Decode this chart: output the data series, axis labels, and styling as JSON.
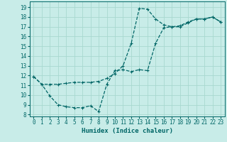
{
  "xlabel": "Humidex (Indice chaleur)",
  "bg_color": "#c8ece8",
  "grid_color": "#a8d8d0",
  "line_color": "#006666",
  "xlim": [
    -0.5,
    23.5
  ],
  "ylim": [
    7.8,
    19.6
  ],
  "xticks": [
    0,
    1,
    2,
    3,
    4,
    5,
    6,
    7,
    8,
    9,
    10,
    11,
    12,
    13,
    14,
    15,
    16,
    17,
    18,
    19,
    20,
    21,
    22,
    23
  ],
  "yticks": [
    8,
    9,
    10,
    11,
    12,
    13,
    14,
    15,
    16,
    17,
    18,
    19
  ],
  "series1_x": [
    0,
    1,
    2,
    3,
    4,
    5,
    6,
    7,
    8,
    9,
    10,
    11,
    12,
    13,
    14,
    15,
    16,
    17,
    18,
    19,
    20,
    21,
    22,
    23
  ],
  "series1_y": [
    11.9,
    11.1,
    9.9,
    9.0,
    8.8,
    8.7,
    8.7,
    8.9,
    8.3,
    11.1,
    12.5,
    12.6,
    12.4,
    12.6,
    12.5,
    15.3,
    16.9,
    17.0,
    17.0,
    17.4,
    17.8,
    17.8,
    18.0,
    17.5
  ],
  "series2_x": [
    0,
    1,
    2,
    3,
    4,
    5,
    6,
    7,
    8,
    9,
    10,
    11,
    12,
    13,
    14,
    15,
    16,
    17,
    18,
    19,
    20,
    21,
    22,
    23
  ],
  "series2_y": [
    11.9,
    11.1,
    11.1,
    11.1,
    11.2,
    11.3,
    11.3,
    11.3,
    11.4,
    11.7,
    12.2,
    13.0,
    15.3,
    18.9,
    18.8,
    17.8,
    17.2,
    17.0,
    17.1,
    17.5,
    17.8,
    17.8,
    18.0,
    17.5
  ],
  "tick_fontsize": 5.5,
  "xlabel_fontsize": 6.5,
  "marker_size": 3,
  "linewidth": 0.9
}
